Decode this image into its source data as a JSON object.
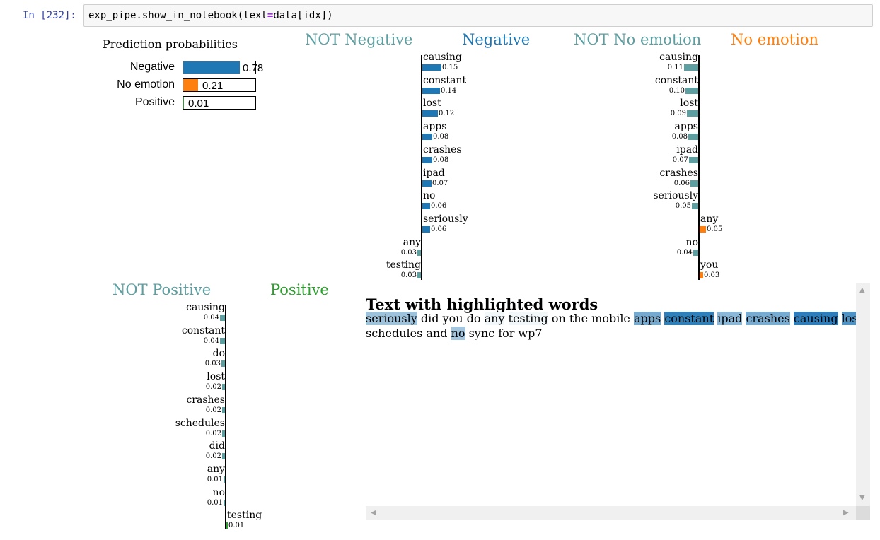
{
  "cell": {
    "prompt": "In [232]:",
    "code_pre": "exp_pipe.show_in_notebook(text",
    "code_op": "=",
    "code_post": "data[idx])"
  },
  "prediction": {
    "title": "Prediction probabilities",
    "rows": [
      {
        "label": "Negative",
        "value": "0.78",
        "fraction": 0.78,
        "color": "#1f77b4"
      },
      {
        "label": "No emotion",
        "value": "0.21",
        "fraction": 0.21,
        "color": "#ff7f0e"
      },
      {
        "label": "Positive",
        "value": "0.01",
        "fraction": 0.01,
        "color": "#2ca02c"
      }
    ]
  },
  "panels": [
    {
      "not_label": "NOT Negative",
      "label": "Negative",
      "color": "#1f77b4",
      "not_color": "#5d9ea0",
      "features": [
        {
          "word": "causing",
          "value": "0.15",
          "num": 0.15,
          "side": "pos"
        },
        {
          "word": "constant",
          "value": "0.14",
          "num": 0.14,
          "side": "pos"
        },
        {
          "word": "lost",
          "value": "0.12",
          "num": 0.12,
          "side": "pos"
        },
        {
          "word": "apps",
          "value": "0.08",
          "num": 0.08,
          "side": "pos"
        },
        {
          "word": "crashes",
          "value": "0.08",
          "num": 0.08,
          "side": "pos"
        },
        {
          "word": "ipad",
          "value": "0.07",
          "num": 0.07,
          "side": "pos"
        },
        {
          "word": "no",
          "value": "0.06",
          "num": 0.06,
          "side": "pos"
        },
        {
          "word": "seriously",
          "value": "0.06",
          "num": 0.06,
          "side": "pos"
        },
        {
          "word": "any",
          "value": "0.03",
          "num": 0.03,
          "side": "neg"
        },
        {
          "word": "testing",
          "value": "0.03",
          "num": 0.03,
          "side": "neg"
        }
      ]
    },
    {
      "not_label": "NOT No emotion",
      "label": "No emotion",
      "color": "#ff7f0e",
      "not_color": "#5d9ea0",
      "features": [
        {
          "word": "causing",
          "value": "0.11",
          "num": 0.11,
          "side": "neg"
        },
        {
          "word": "constant",
          "value": "0.10",
          "num": 0.1,
          "side": "neg"
        },
        {
          "word": "lost",
          "value": "0.09",
          "num": 0.09,
          "side": "neg"
        },
        {
          "word": "apps",
          "value": "0.08",
          "num": 0.08,
          "side": "neg"
        },
        {
          "word": "ipad",
          "value": "0.07",
          "num": 0.07,
          "side": "neg"
        },
        {
          "word": "crashes",
          "value": "0.06",
          "num": 0.06,
          "side": "neg"
        },
        {
          "word": "seriously",
          "value": "0.05",
          "num": 0.05,
          "side": "neg"
        },
        {
          "word": "any",
          "value": "0.05",
          "num": 0.05,
          "side": "pos"
        },
        {
          "word": "no",
          "value": "0.04",
          "num": 0.04,
          "side": "neg"
        },
        {
          "word": "you",
          "value": "0.03",
          "num": 0.03,
          "side": "pos"
        }
      ]
    },
    {
      "not_label": "NOT Positive",
      "label": "Positive",
      "color": "#2ca02c",
      "not_color": "#5d9ea0",
      "features": [
        {
          "word": "causing",
          "value": "0.04",
          "num": 0.04,
          "side": "neg"
        },
        {
          "word": "constant",
          "value": "0.04",
          "num": 0.04,
          "side": "neg"
        },
        {
          "word": "do",
          "value": "0.03",
          "num": 0.03,
          "side": "neg"
        },
        {
          "word": "lost",
          "value": "0.02",
          "num": 0.02,
          "side": "neg"
        },
        {
          "word": "crashes",
          "value": "0.02",
          "num": 0.02,
          "side": "neg"
        },
        {
          "word": "schedules",
          "value": "0.02",
          "num": 0.02,
          "side": "neg"
        },
        {
          "word": "did",
          "value": "0.02",
          "num": 0.02,
          "side": "neg"
        },
        {
          "word": "any",
          "value": "0.01",
          "num": 0.01,
          "side": "neg"
        },
        {
          "word": "no",
          "value": "0.01",
          "num": 0.01,
          "side": "neg"
        },
        {
          "word": "testing",
          "value": "0.01",
          "num": 0.01,
          "side": "pos"
        }
      ]
    }
  ],
  "highlighted": {
    "title": "Text with highlighted words",
    "lines": [
      [
        {
          "t": "seriously",
          "bg": "#9dc3dc"
        },
        {
          "t": " "
        },
        {
          "t": " did you do "
        },
        {
          "t": "any",
          "bg": "#f2f7fa"
        },
        {
          "t": " "
        },
        {
          "t": "testing",
          "bg": "#f2f7fa"
        },
        {
          "t": " on the mobile "
        },
        {
          "t": "apps",
          "bg": "#74aad0"
        },
        {
          "t": "  "
        },
        {
          "t": "constant",
          "bg": "#2e80bb"
        },
        {
          "t": " "
        },
        {
          "t": "ipad",
          "bg": "#8ab8d8"
        },
        {
          "t": " "
        },
        {
          "t": "crashes",
          "bg": "#76acd1"
        },
        {
          "t": " "
        },
        {
          "t": "causing",
          "bg": "#2b7ebb"
        },
        {
          "t": " "
        },
        {
          "t": "lost",
          "bg": "#4d93c5"
        }
      ],
      [
        {
          "t": "schedules"
        },
        {
          "t": "  and "
        },
        {
          "t": "no",
          "bg": "#a3c6de"
        },
        {
          "t": " sync for wp7"
        }
      ]
    ]
  }
}
